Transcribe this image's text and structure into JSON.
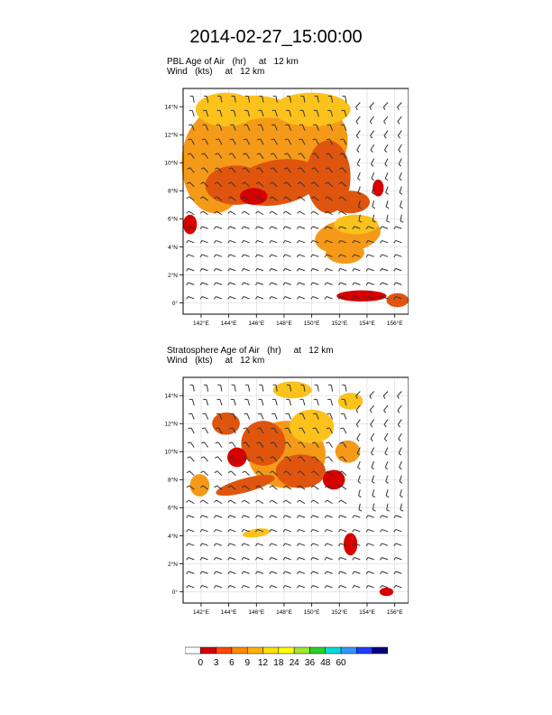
{
  "title": "2014-02-27_15:00:00",
  "panels": [
    {
      "line1": "PBL Age of Air   (hr)     at   12 km",
      "line2": "Wind   (kts)     at   12 km"
    },
    {
      "line1": "Stratosphere Age of Air   (hr)     at   12 km",
      "line2": "Wind   (kts)     at   12 km"
    }
  ],
  "axes": {
    "x_ticks": [
      "142°E",
      "144°E",
      "146°E",
      "148°E",
      "150°E",
      "152°E",
      "154°E",
      "156°E"
    ],
    "y_ticks": [
      "14°N",
      "12°N",
      "10°N",
      "8°N",
      "6°N",
      "4°N",
      "2°N",
      "0°"
    ]
  },
  "chart_data": {
    "type": "heatmap",
    "xlim": [
      140.7,
      157.0
    ],
    "ylim": [
      -0.8,
      15.3
    ],
    "x_ticks": [
      142,
      144,
      146,
      148,
      150,
      152,
      154,
      156
    ],
    "y_ticks": [
      14,
      12,
      10,
      8,
      6,
      4,
      2,
      0
    ],
    "colorbar_labels": [
      "0",
      "3",
      "6",
      "9",
      "12",
      "18",
      "24",
      "36",
      "48",
      "60"
    ],
    "colorbar_colors": [
      "#ffffff",
      "#d60000",
      "#ff4a00",
      "#ff8c00",
      "#ffb400",
      "#ffe000",
      "#ffff00",
      "#a0e632",
      "#28d228",
      "#00dcdc",
      "#3296ff",
      "#1e3cff",
      "#000080"
    ],
    "grid": true,
    "colors": {
      "fill_main": "#f59a18",
      "fill_dark": "#e0550e",
      "fill_light": "#fbc21c",
      "wind_barb": "#333333"
    }
  }
}
